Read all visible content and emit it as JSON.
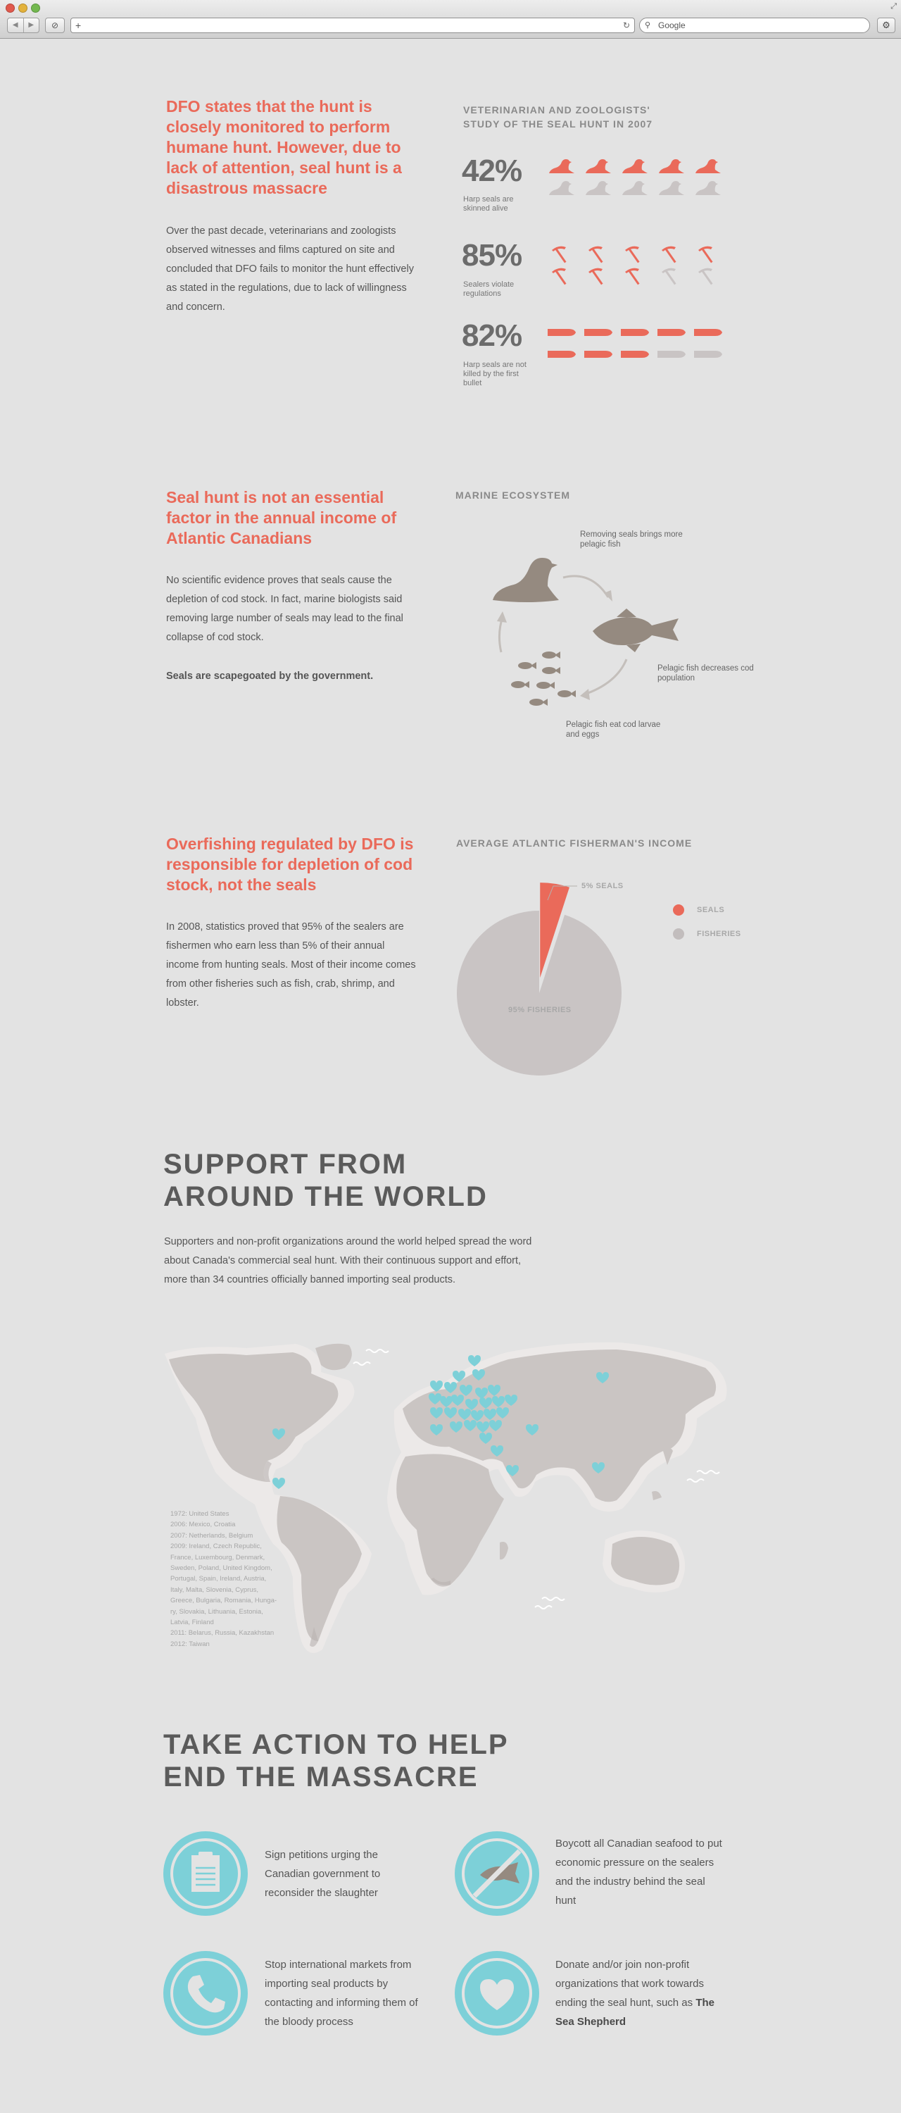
{
  "browser": {
    "search_placeholder": "Google",
    "back_icon": "back-arrow-icon",
    "forward_icon": "forward-arrow-icon",
    "reader_icon": "reader-icon",
    "add_icon": "plus-icon",
    "reload_icon": "reload-icon",
    "search_icon": "search-icon",
    "settings_icon": "gear-icon"
  },
  "colors": {
    "accent": "#ea6a5a",
    "neutral": "#c9c4c4",
    "teal": "#7dd0d8",
    "animal": "#958a80",
    "background": "#e3e3e3"
  },
  "section1": {
    "heading": "DFO states that the hunt is closely monitored to perform humane hunt. However, due to lack of attention, seal hunt is a disastrous massacre",
    "body": "Over the past decade, veterinarians and zoologists observed witnesses and films captured on site and concluded that DFO fails to monitor the hunt effectively as stated in the regulations, due to lack of willingness and concern.",
    "study_title": "VETERINARIAN AND ZOOLOGISTS' STUDY OF THE SEAL HUNT IN 2007",
    "stats": [
      {
        "value": "42%",
        "desc": "Harp seals are skinned alive",
        "icon": "seal-icon",
        "filled": 5,
        "total": 10
      },
      {
        "value": "85%",
        "desc": "Sealers violate regulations",
        "icon": "hakapik-icon",
        "filled": 8,
        "total": 10
      },
      {
        "value": "82%",
        "desc": "Harp seals are not killed by the first bullet",
        "icon": "bullet-icon",
        "filled": 8,
        "total": 10
      }
    ]
  },
  "section2": {
    "heading": "Seal hunt is not an essential factor in the annual income of Atlantic Canadians",
    "body": "No scientific evidence proves that seals cause the depletion of cod stock. In fact, marine biologists said removing large number of seals may lead to the final collapse of cod stock.",
    "emphasis": "Seals are scapegoated by the government.",
    "diagram_title": "MARINE ECOSYSTEM",
    "labels": {
      "seals": "Removing seals brings more pelagic fish",
      "cod": "Pelagic fish decreases cod population",
      "pelagic": "Pelagic fish eat cod larvae and eggs"
    }
  },
  "section3": {
    "heading": "Overfishing regulated by DFO is responsible for depletion of cod stock, not the seals",
    "body": "In 2008, statistics proved that 95% of the sealers are fishermen who earn less than 5% of their annual income from hunting seals. Most of their income comes from other fisheries such as fish, crab, shrimp, and lobster."
  },
  "chart_data": {
    "type": "pie",
    "title": "AVERAGE ATLANTIC FISHERMAN'S INCOME",
    "slices": [
      {
        "name": "SEALS",
        "value": 5,
        "label": "5% SEALS",
        "color": "#ea6a5a"
      },
      {
        "name": "FISHERIES",
        "value": 95,
        "label": "95% FISHERIES",
        "color": "#c9c4c4"
      }
    ],
    "legend": [
      "SEALS",
      "FISHERIES"
    ],
    "legend_position": "right"
  },
  "section4": {
    "title_line1": "SUPPORT FROM",
    "title_line2": "AROUND THE WORLD",
    "body": "Supporters and non-profit organizations around the world helped spread the word about Canada's commercial seal hunt. With their continuous support and effort, more than 34 countries officially banned importing seal products.",
    "timeline": [
      "1972: United States",
      "2006: Mexico, Croatia",
      "2007: Netherlands, Belgium",
      "2009: Ireland, Czech Republic,",
      "France, Luxembourg, Denmark,",
      "Sweden, Poland, United Kingdom,",
      "Portugal, Spain, Ireland, Austria,",
      "Italy, Malta, Slovenia, Cyprus,",
      "Greece, Bulgaria, Romania, Hunga-",
      "ry, Slovakia, Lithuania, Estonia,",
      "Latvia, Finland",
      "2011: Belarus, Russia, Kazakhstan",
      "2012: Taiwan"
    ]
  },
  "section5": {
    "title_line1": "TAKE ACTION TO HELP",
    "title_line2": "END THE MASSACRE",
    "actions": [
      {
        "text": "Sign petitions urging the Canadian government to reconsider the slaughter",
        "icon": "clipboard-icon"
      },
      {
        "text": "Boycott all Canadian seafood to put economic pressure on the sealers and the industry behind the seal hunt",
        "icon": "no-fish-icon"
      },
      {
        "text": "Stop international markets from importing seal products by contacting and informing them of the bloody process",
        "icon": "phone-icon"
      },
      {
        "text": "Donate and/or join non-profit organizations that work towards ending the seal hunt, such as",
        "strong": "The Sea Shepherd",
        "icon": "heart-icon"
      }
    ]
  }
}
